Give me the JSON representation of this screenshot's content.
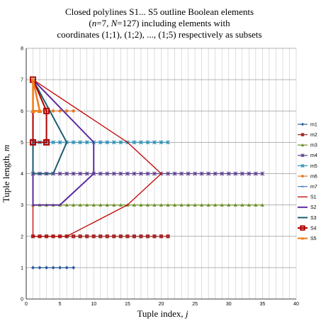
{
  "chart_data": {
    "type": "line",
    "title_lines": [
      "Closed polylines S1... S5 outline Boolean elements",
      "(n=7, N=127) including elements with",
      "coordinates (1;1), (1;2), ..., (1;5) respectively as subsets"
    ],
    "xlabel": "Tuple index, j",
    "ylabel": "Tuple length, m",
    "xlim": [
      0,
      40
    ],
    "ylim": [
      0,
      8
    ],
    "x_ticks": [
      0,
      5,
      10,
      15,
      20,
      25,
      30,
      35,
      40
    ],
    "y_ticks": [
      0,
      1,
      2,
      3,
      4,
      5,
      6,
      7,
      8
    ],
    "grid": true,
    "legend_position": "right",
    "series": [
      {
        "name": "m1",
        "color": "#2e5c9a",
        "marker": "diamond",
        "line_width": 1.2,
        "points": [
          [
            1,
            1
          ],
          [
            2,
            1
          ],
          [
            3,
            1
          ],
          [
            4,
            1
          ],
          [
            5,
            1
          ],
          [
            6,
            1
          ],
          [
            7,
            1
          ]
        ]
      },
      {
        "name": "m2",
        "color": "#a52a2a",
        "marker": "square",
        "line_width": 1.2,
        "points": [
          [
            1,
            2
          ],
          [
            2,
            2
          ],
          [
            3,
            2
          ],
          [
            4,
            2
          ],
          [
            5,
            2
          ],
          [
            6,
            2
          ],
          [
            7,
            2
          ],
          [
            8,
            2
          ],
          [
            9,
            2
          ],
          [
            10,
            2
          ],
          [
            11,
            2
          ],
          [
            12,
            2
          ],
          [
            13,
            2
          ],
          [
            14,
            2
          ],
          [
            15,
            2
          ],
          [
            16,
            2
          ],
          [
            17,
            2
          ],
          [
            18,
            2
          ],
          [
            19,
            2
          ],
          [
            20,
            2
          ],
          [
            21,
            2
          ]
        ]
      },
      {
        "name": "m3",
        "color": "#6f8f2a",
        "marker": "triangle",
        "line_width": 1.2,
        "points": [
          [
            1,
            3
          ],
          [
            2,
            3
          ],
          [
            3,
            3
          ],
          [
            4,
            3
          ],
          [
            5,
            3
          ],
          [
            6,
            3
          ],
          [
            7,
            3
          ],
          [
            8,
            3
          ],
          [
            9,
            3
          ],
          [
            10,
            3
          ],
          [
            11,
            3
          ],
          [
            12,
            3
          ],
          [
            13,
            3
          ],
          [
            14,
            3
          ],
          [
            15,
            3
          ],
          [
            16,
            3
          ],
          [
            17,
            3
          ],
          [
            18,
            3
          ],
          [
            19,
            3
          ],
          [
            20,
            3
          ],
          [
            21,
            3
          ],
          [
            22,
            3
          ],
          [
            23,
            3
          ],
          [
            24,
            3
          ],
          [
            25,
            3
          ],
          [
            26,
            3
          ],
          [
            27,
            3
          ],
          [
            28,
            3
          ],
          [
            29,
            3
          ],
          [
            30,
            3
          ],
          [
            31,
            3
          ],
          [
            32,
            3
          ],
          [
            33,
            3
          ],
          [
            34,
            3
          ],
          [
            35,
            3
          ]
        ]
      },
      {
        "name": "m4",
        "color": "#5b3f8c",
        "marker": "x",
        "line_width": 1.2,
        "points": [
          [
            1,
            4
          ],
          [
            2,
            4
          ],
          [
            3,
            4
          ],
          [
            4,
            4
          ],
          [
            5,
            4
          ],
          [
            6,
            4
          ],
          [
            7,
            4
          ],
          [
            8,
            4
          ],
          [
            9,
            4
          ],
          [
            10,
            4
          ],
          [
            11,
            4
          ],
          [
            12,
            4
          ],
          [
            13,
            4
          ],
          [
            14,
            4
          ],
          [
            15,
            4
          ],
          [
            16,
            4
          ],
          [
            17,
            4
          ],
          [
            18,
            4
          ],
          [
            19,
            4
          ],
          [
            20,
            4
          ],
          [
            21,
            4
          ],
          [
            22,
            4
          ],
          [
            23,
            4
          ],
          [
            24,
            4
          ],
          [
            25,
            4
          ],
          [
            26,
            4
          ],
          [
            27,
            4
          ],
          [
            28,
            4
          ],
          [
            29,
            4
          ],
          [
            30,
            4
          ],
          [
            31,
            4
          ],
          [
            32,
            4
          ],
          [
            33,
            4
          ],
          [
            34,
            4
          ],
          [
            35,
            4
          ]
        ]
      },
      {
        "name": "m5",
        "color": "#2f8fb3",
        "marker": "x",
        "line_width": 1.2,
        "points": [
          [
            1,
            5
          ],
          [
            2,
            5
          ],
          [
            3,
            5
          ],
          [
            4,
            5
          ],
          [
            5,
            5
          ],
          [
            6,
            5
          ],
          [
            7,
            5
          ],
          [
            8,
            5
          ],
          [
            9,
            5
          ],
          [
            10,
            5
          ],
          [
            11,
            5
          ],
          [
            12,
            5
          ],
          [
            13,
            5
          ],
          [
            14,
            5
          ],
          [
            15,
            5
          ],
          [
            16,
            5
          ],
          [
            17,
            5
          ],
          [
            18,
            5
          ],
          [
            19,
            5
          ],
          [
            20,
            5
          ],
          [
            21,
            5
          ]
        ]
      },
      {
        "name": "m6",
        "color": "#e07b2a",
        "marker": "circle",
        "line_width": 1.2,
        "points": [
          [
            1,
            6
          ],
          [
            2,
            6
          ],
          [
            3,
            6
          ],
          [
            4,
            6
          ],
          [
            5,
            6
          ],
          [
            6,
            6
          ],
          [
            7,
            6
          ]
        ]
      },
      {
        "name": "m7",
        "color": "#4f7fc0",
        "marker": "dash",
        "line_width": 1.2,
        "points": [
          [
            1,
            7
          ]
        ]
      },
      {
        "name": "S1",
        "color": "#c00000",
        "marker": "none",
        "line_width": 1.3,
        "points": [
          [
            1,
            7
          ],
          [
            15,
            5
          ],
          [
            20,
            4
          ],
          [
            15,
            3
          ],
          [
            6,
            2
          ],
          [
            1,
            2
          ],
          [
            1,
            7
          ]
        ]
      },
      {
        "name": "S2",
        "color": "#5b2a9e",
        "marker": "none",
        "line_width": 2,
        "points": [
          [
            1,
            7
          ],
          [
            10,
            5
          ],
          [
            10,
            4
          ],
          [
            5,
            3
          ],
          [
            1,
            3
          ],
          [
            1,
            7
          ]
        ]
      },
      {
        "name": "S3",
        "color": "#1f5c70",
        "marker": "none",
        "line_width": 2,
        "points": [
          [
            1,
            7
          ],
          [
            6,
            5
          ],
          [
            4,
            4
          ],
          [
            1,
            4
          ],
          [
            1,
            7
          ]
        ]
      },
      {
        "name": "S4",
        "color": "#b00000",
        "marker": "square-open",
        "line_width": 2,
        "points": [
          [
            1,
            7
          ],
          [
            3,
            6
          ],
          [
            3,
            5
          ],
          [
            1,
            5
          ],
          [
            1,
            7
          ]
        ]
      },
      {
        "name": "S5",
        "color": "#f07c1c",
        "marker": "triangle",
        "line_width": 2.5,
        "points": [
          [
            1,
            7
          ],
          [
            2,
            6
          ],
          [
            1,
            6
          ],
          [
            1,
            7
          ]
        ]
      }
    ]
  }
}
